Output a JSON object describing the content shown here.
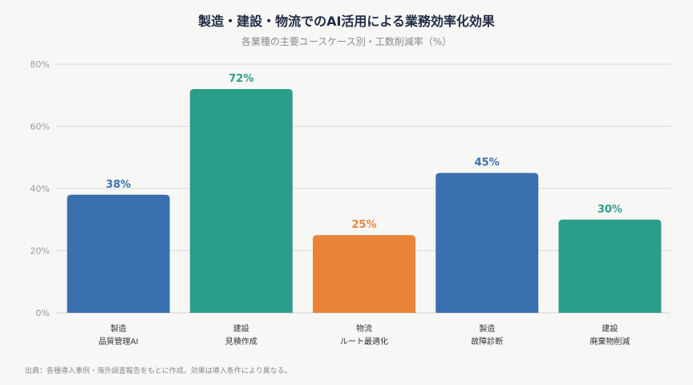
{
  "title": "製造・建設・物流でのAI活用による業務効率化効果",
  "subtitle": "各業種の主要ユースケース別・工数削減率（%）",
  "source": "出典：各種導入事例・海外調査報告をもとに作成。効果は導入条件により異なる。",
  "colors": {
    "blue": "#3b70b0",
    "teal": "#2b9e8a",
    "orange": "#e8843a",
    "grid": "#d9d9d9",
    "tick": "#9a9a9a",
    "label_blue": "#3b70b0",
    "label_teal": "#2b9e8a",
    "label_orange": "#e8843a"
  },
  "chart_data": {
    "type": "bar",
    "categories": [
      [
        "製造",
        "品質管理AI"
      ],
      [
        "建設",
        "見積作成"
      ],
      [
        "物流",
        "ルート最適化"
      ],
      [
        "製造",
        "故障診断"
      ],
      [
        "建設",
        "廃棄物削減"
      ]
    ],
    "values": [
      38,
      72,
      25,
      45,
      30
    ],
    "value_labels": [
      "38%",
      "72%",
      "25%",
      "45%",
      "30%"
    ],
    "bar_colors": [
      "blue",
      "teal",
      "orange",
      "blue",
      "teal"
    ],
    "ylim": [
      0,
      80
    ],
    "yticks": [
      0,
      20,
      40,
      60,
      80
    ],
    "ytick_labels": [
      "0%",
      "20%",
      "40%",
      "60%",
      "80%"
    ],
    "grid": true,
    "xlabel": "",
    "ylabel": ""
  }
}
